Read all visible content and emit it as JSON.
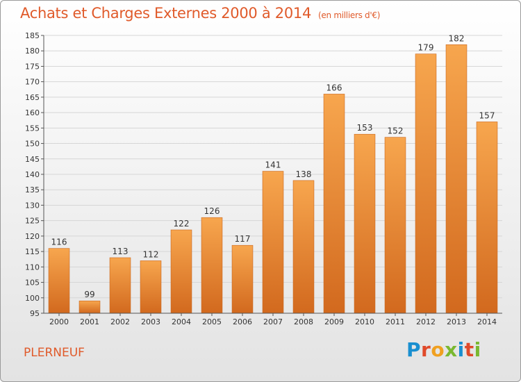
{
  "header": {
    "title": "Achats et Charges Externes 2000 à 2014",
    "subtitle": "(en milliers d'€)"
  },
  "footer": {
    "commune": "PLERNEUF",
    "logo_text": "Proxiti",
    "logo_colors": [
      "#1a8fd0",
      "#e04a2a",
      "#f0a020",
      "#7ab830",
      "#1a8fd0",
      "#e04a2a",
      "#7ab830"
    ]
  },
  "colors": {
    "title": "#e05a2a",
    "bar_top": "#f7a64e",
    "bar_bottom": "#d2691e",
    "grid": "#d6d6d6",
    "axis": "#555555"
  },
  "chart_data": {
    "type": "bar",
    "title": "Achats et Charges Externes 2000 à 2014",
    "subtitle": "(en milliers d'€)",
    "xlabel": "",
    "ylabel": "",
    "categories": [
      "2000",
      "2001",
      "2002",
      "2003",
      "2004",
      "2005",
      "2006",
      "2007",
      "2008",
      "2009",
      "2010",
      "2011",
      "2012",
      "2013",
      "2014"
    ],
    "values": [
      116,
      99,
      113,
      112,
      122,
      126,
      117,
      141,
      138,
      166,
      153,
      152,
      179,
      182,
      157
    ],
    "ylim": [
      95,
      185
    ],
    "yticks": [
      95,
      100,
      105,
      110,
      115,
      120,
      125,
      130,
      135,
      140,
      145,
      150,
      155,
      160,
      165,
      170,
      175,
      180,
      185
    ],
    "grid": true,
    "legend": "none"
  }
}
